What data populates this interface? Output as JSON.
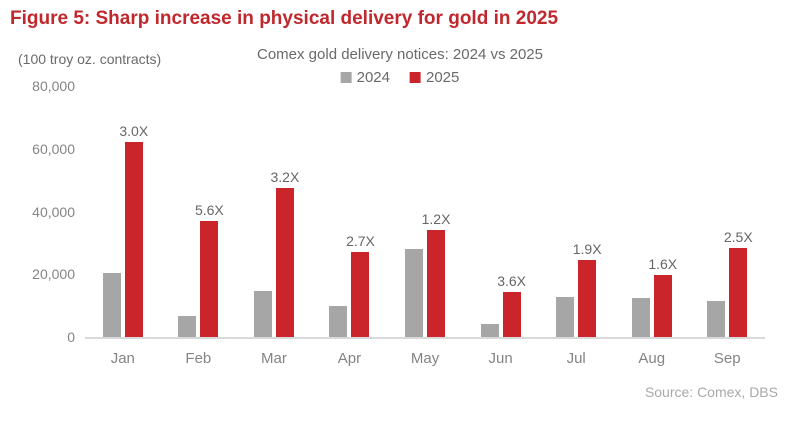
{
  "figure_title": "Figure 5: Sharp increase in physical delivery for gold in 2025",
  "unit_label": "(100 troy oz. contracts)",
  "source": "Source: Comex, DBS",
  "colors": {
    "title_red": "#c0282d",
    "series_2024": "#a6a6a6",
    "series_2025": "#c9252b",
    "axis_line": "#d9d9d9",
    "axis_text": "#848484",
    "annotation_text": "#666666",
    "source_text": "#a9a9a9"
  },
  "chart_data": {
    "type": "bar",
    "title": "Comex gold delivery notices: 2024 vs 2025",
    "categories": [
      "Jan",
      "Feb",
      "Mar",
      "Apr",
      "May",
      "Jun",
      "Jul",
      "Aug",
      "Sep"
    ],
    "series": [
      {
        "name": "2024",
        "color": "#a6a6a6",
        "values": [
          20500,
          6600,
          14800,
          10000,
          28000,
          4000,
          12800,
          12300,
          11400
        ]
      },
      {
        "name": "2025",
        "color": "#c9252b",
        "values": [
          62000,
          37000,
          47500,
          27000,
          34000,
          14400,
          24500,
          19800,
          28500
        ]
      }
    ],
    "bar_labels_2025": [
      "3.0X",
      "5.6X",
      "3.2X",
      "2.7X",
      "1.2X",
      "3.6X",
      "1.9X",
      "1.6X",
      "2.5X"
    ],
    "xlabel": "",
    "ylabel": "(100 troy oz. contracts)",
    "ylim": [
      0,
      80000
    ],
    "yticks": [
      0,
      20000,
      40000,
      60000,
      80000
    ],
    "ytick_labels": [
      "0",
      "20,000",
      "40,000",
      "60,000",
      "80,000"
    ],
    "legend_position": "top-center",
    "grid": false
  }
}
